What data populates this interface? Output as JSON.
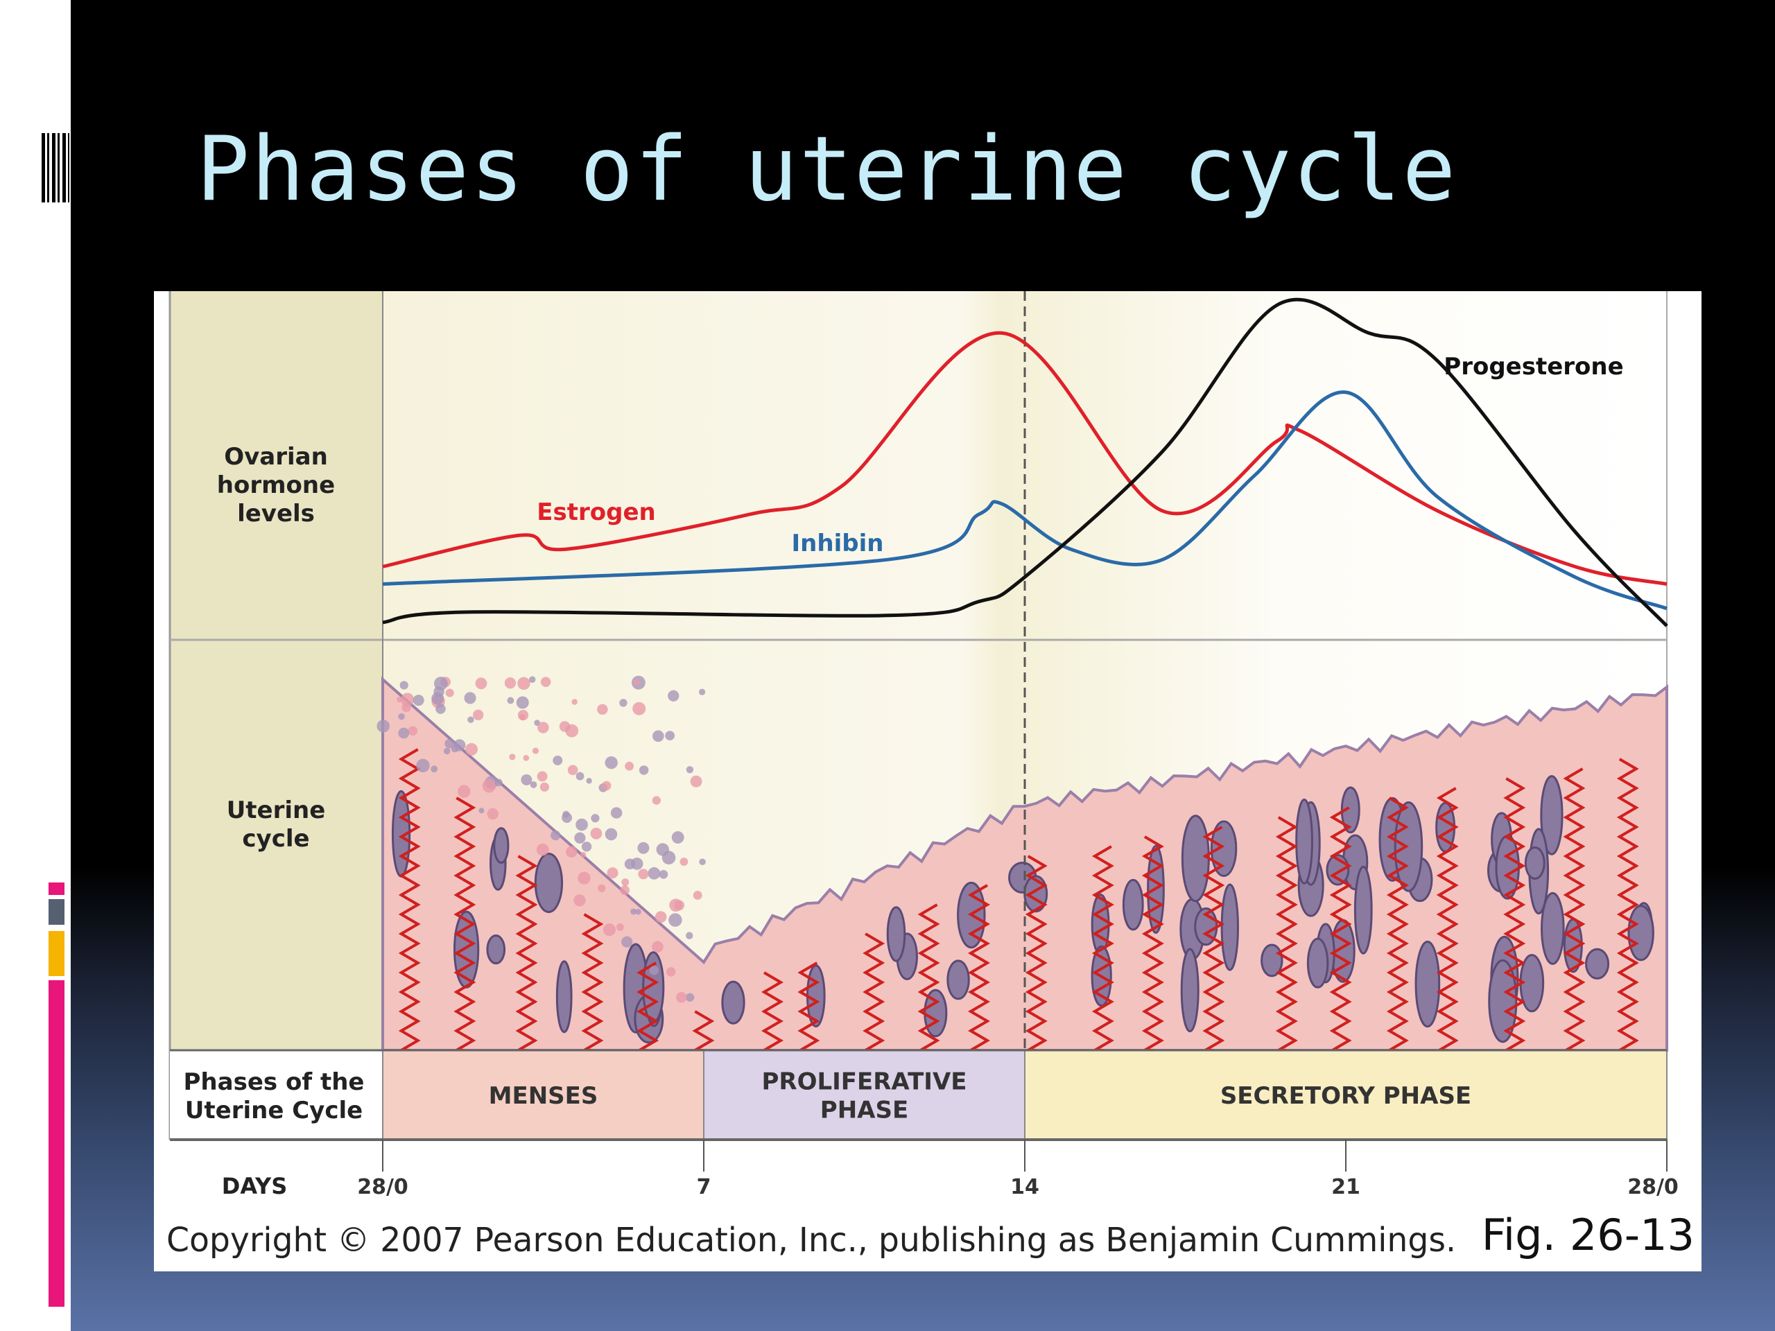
{
  "slide": {
    "title": "Phases of uterine cycle",
    "accent_colors": {
      "pink": "#e8157a",
      "gray": "#556070",
      "orange": "#f6b300"
    }
  },
  "figure": {
    "row_labels": {
      "ovarian": [
        "Ovarian",
        "hormone",
        "levels"
      ],
      "uterine": [
        "Uterine",
        "cycle"
      ],
      "phases": [
        "Phases of the",
        "Uterine Cycle"
      ]
    },
    "phases": [
      {
        "label": [
          "MENSES"
        ],
        "start": 0,
        "end": 7,
        "color": "#f6cfc4"
      },
      {
        "label": [
          "PROLIFERATIVE",
          "PHASE"
        ],
        "start": 7,
        "end": 14,
        "color": "#dcd3e8"
      },
      {
        "label": [
          "SECRETORY PHASE"
        ],
        "start": 14,
        "end": 28,
        "color": "#f8eec2"
      }
    ],
    "days_label": "DAYS",
    "copyright": "Copyright © 2007 Pearson Education, Inc., publishing as Benjamin Cummings.",
    "fig_number": "Fig. 26-13"
  },
  "chart_data": {
    "type": "line",
    "xlabel": "DAYS",
    "ylabel": "Ovarian hormone levels",
    "xlim": [
      0,
      28
    ],
    "ylim": [
      0,
      1
    ],
    "x_ticks": [
      {
        "value": 0,
        "label": "28/0"
      },
      {
        "value": 7,
        "label": "7"
      },
      {
        "value": 14,
        "label": "14"
      },
      {
        "value": 21,
        "label": "21"
      },
      {
        "value": 28,
        "label": "28/0"
      }
    ],
    "ovulation_marker_day": 14,
    "grid": false,
    "series": [
      {
        "name": "Estrogen",
        "color": "#e0202a",
        "x": [
          0,
          3,
          4,
          8,
          10,
          13.5,
          17,
          19.5,
          20,
          23,
          26,
          28
        ],
        "y": [
          0.21,
          0.3,
          0.26,
          0.36,
          0.44,
          0.88,
          0.37,
          0.57,
          0.6,
          0.37,
          0.21,
          0.16
        ]
      },
      {
        "name": "Inhibin",
        "color": "#2a6aa8",
        "x": [
          0,
          11,
          13,
          13.5,
          15,
          17,
          19,
          21,
          23,
          26,
          28
        ],
        "y": [
          0.16,
          0.23,
          0.36,
          0.39,
          0.26,
          0.23,
          0.47,
          0.71,
          0.41,
          0.18,
          0.09
        ]
      },
      {
        "name": "Progesterone",
        "color": "#111111",
        "x": [
          0,
          2,
          11,
          13,
          14,
          17,
          19.5,
          21.5,
          23,
          26,
          28
        ],
        "y": [
          0.05,
          0.08,
          0.07,
          0.11,
          0.18,
          0.54,
          0.96,
          0.88,
          0.8,
          0.31,
          0.04
        ]
      }
    ]
  }
}
